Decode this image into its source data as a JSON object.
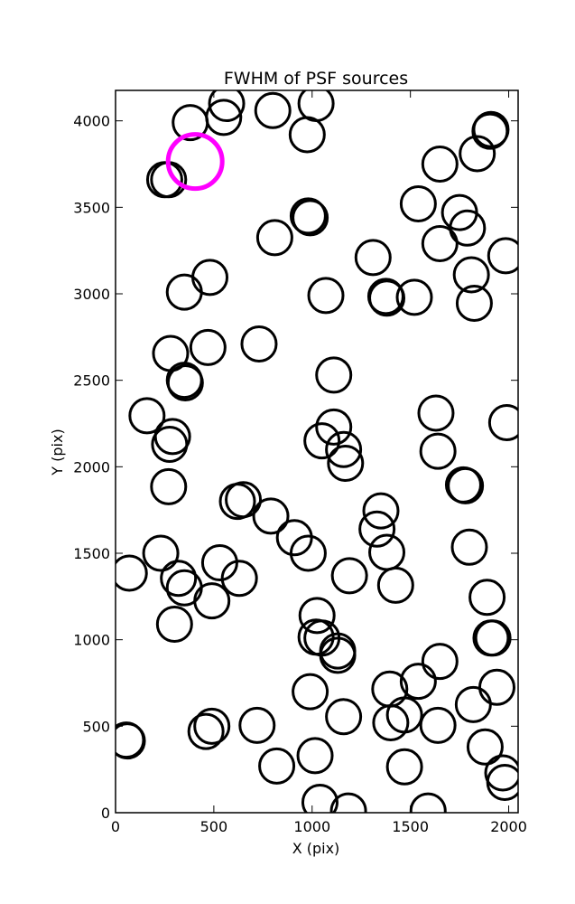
{
  "chart_data": {
    "type": "scatter",
    "title": "FWHM of PSF sources",
    "xlabel": "X (pix)",
    "ylabel": "Y (pix)",
    "xlim": [
      0,
      2048
    ],
    "ylim": [
      0,
      4176
    ],
    "xticks": [
      0,
      500,
      1000,
      1500,
      2000
    ],
    "yticks": [
      0,
      500,
      1000,
      1500,
      2000,
      2500,
      3000,
      3500,
      4000
    ],
    "grid": false,
    "marker": "open-circle",
    "colors": {
      "sources": "#000000",
      "highlight": "#ff00ff"
    },
    "series": [
      {
        "points": [
          [
            250,
            3660
          ],
          [
            270,
            3660
          ],
          [
            380,
            3990
          ],
          [
            550,
            4020
          ],
          [
            565,
            4100
          ],
          [
            800,
            4060
          ],
          [
            1020,
            4100
          ],
          [
            975,
            3920
          ],
          [
            1650,
            3750
          ],
          [
            1840,
            3810
          ],
          [
            1905,
            3940
          ],
          [
            1910,
            3950
          ],
          [
            1540,
            3520
          ],
          [
            1750,
            3470
          ],
          [
            1790,
            3380
          ],
          [
            1650,
            3290
          ],
          [
            1985,
            3220
          ],
          [
            1310,
            3210
          ],
          [
            980,
            3450
          ],
          [
            990,
            3440
          ],
          [
            810,
            3325
          ],
          [
            350,
            3010
          ],
          [
            480,
            3095
          ],
          [
            1070,
            2990
          ],
          [
            1380,
            2975
          ],
          [
            1375,
            2985
          ],
          [
            1520,
            2980
          ],
          [
            1810,
            3110
          ],
          [
            1825,
            2945
          ],
          [
            280,
            2655
          ],
          [
            470,
            2690
          ],
          [
            730,
            2710
          ],
          [
            350,
            2500
          ],
          [
            355,
            2485
          ],
          [
            1110,
            2530
          ],
          [
            160,
            2295
          ],
          [
            290,
            2175
          ],
          [
            275,
            2130
          ],
          [
            1110,
            2230
          ],
          [
            1050,
            2150
          ],
          [
            1160,
            2100
          ],
          [
            1170,
            2020
          ],
          [
            1630,
            2310
          ],
          [
            1640,
            2090
          ],
          [
            1990,
            2255
          ],
          [
            1770,
            1895
          ],
          [
            1780,
            1890
          ],
          [
            270,
            1885
          ],
          [
            620,
            1800
          ],
          [
            650,
            1810
          ],
          [
            790,
            1715
          ],
          [
            1350,
            1745
          ],
          [
            1330,
            1640
          ],
          [
            1380,
            1505
          ],
          [
            1800,
            1535
          ],
          [
            230,
            1500
          ],
          [
            910,
            1590
          ],
          [
            980,
            1500
          ],
          [
            70,
            1385
          ],
          [
            320,
            1355
          ],
          [
            350,
            1300
          ],
          [
            530,
            1445
          ],
          [
            630,
            1355
          ],
          [
            490,
            1225
          ],
          [
            300,
            1090
          ],
          [
            1190,
            1370
          ],
          [
            1425,
            1315
          ],
          [
            1890,
            1245
          ],
          [
            1025,
            1140
          ],
          [
            1020,
            1015
          ],
          [
            1050,
            1010
          ],
          [
            1130,
            935
          ],
          [
            1130,
            910
          ],
          [
            1910,
            1010
          ],
          [
            1920,
            1010
          ],
          [
            1650,
            875
          ],
          [
            990,
            700
          ],
          [
            1395,
            715
          ],
          [
            1540,
            760
          ],
          [
            1940,
            725
          ],
          [
            1820,
            625
          ],
          [
            55,
            420
          ],
          [
            60,
            415
          ],
          [
            460,
            470
          ],
          [
            490,
            500
          ],
          [
            720,
            505
          ],
          [
            1160,
            555
          ],
          [
            1400,
            520
          ],
          [
            1470,
            565
          ],
          [
            1640,
            505
          ],
          [
            1880,
            380
          ],
          [
            820,
            270
          ],
          [
            1015,
            330
          ],
          [
            1470,
            265
          ],
          [
            1970,
            230
          ],
          [
            1980,
            175
          ],
          [
            1040,
            60
          ],
          [
            1185,
            10
          ],
          [
            1590,
            10
          ]
        ]
      },
      {
        "points": [
          [
            405,
            3765
          ]
        ]
      }
    ]
  }
}
